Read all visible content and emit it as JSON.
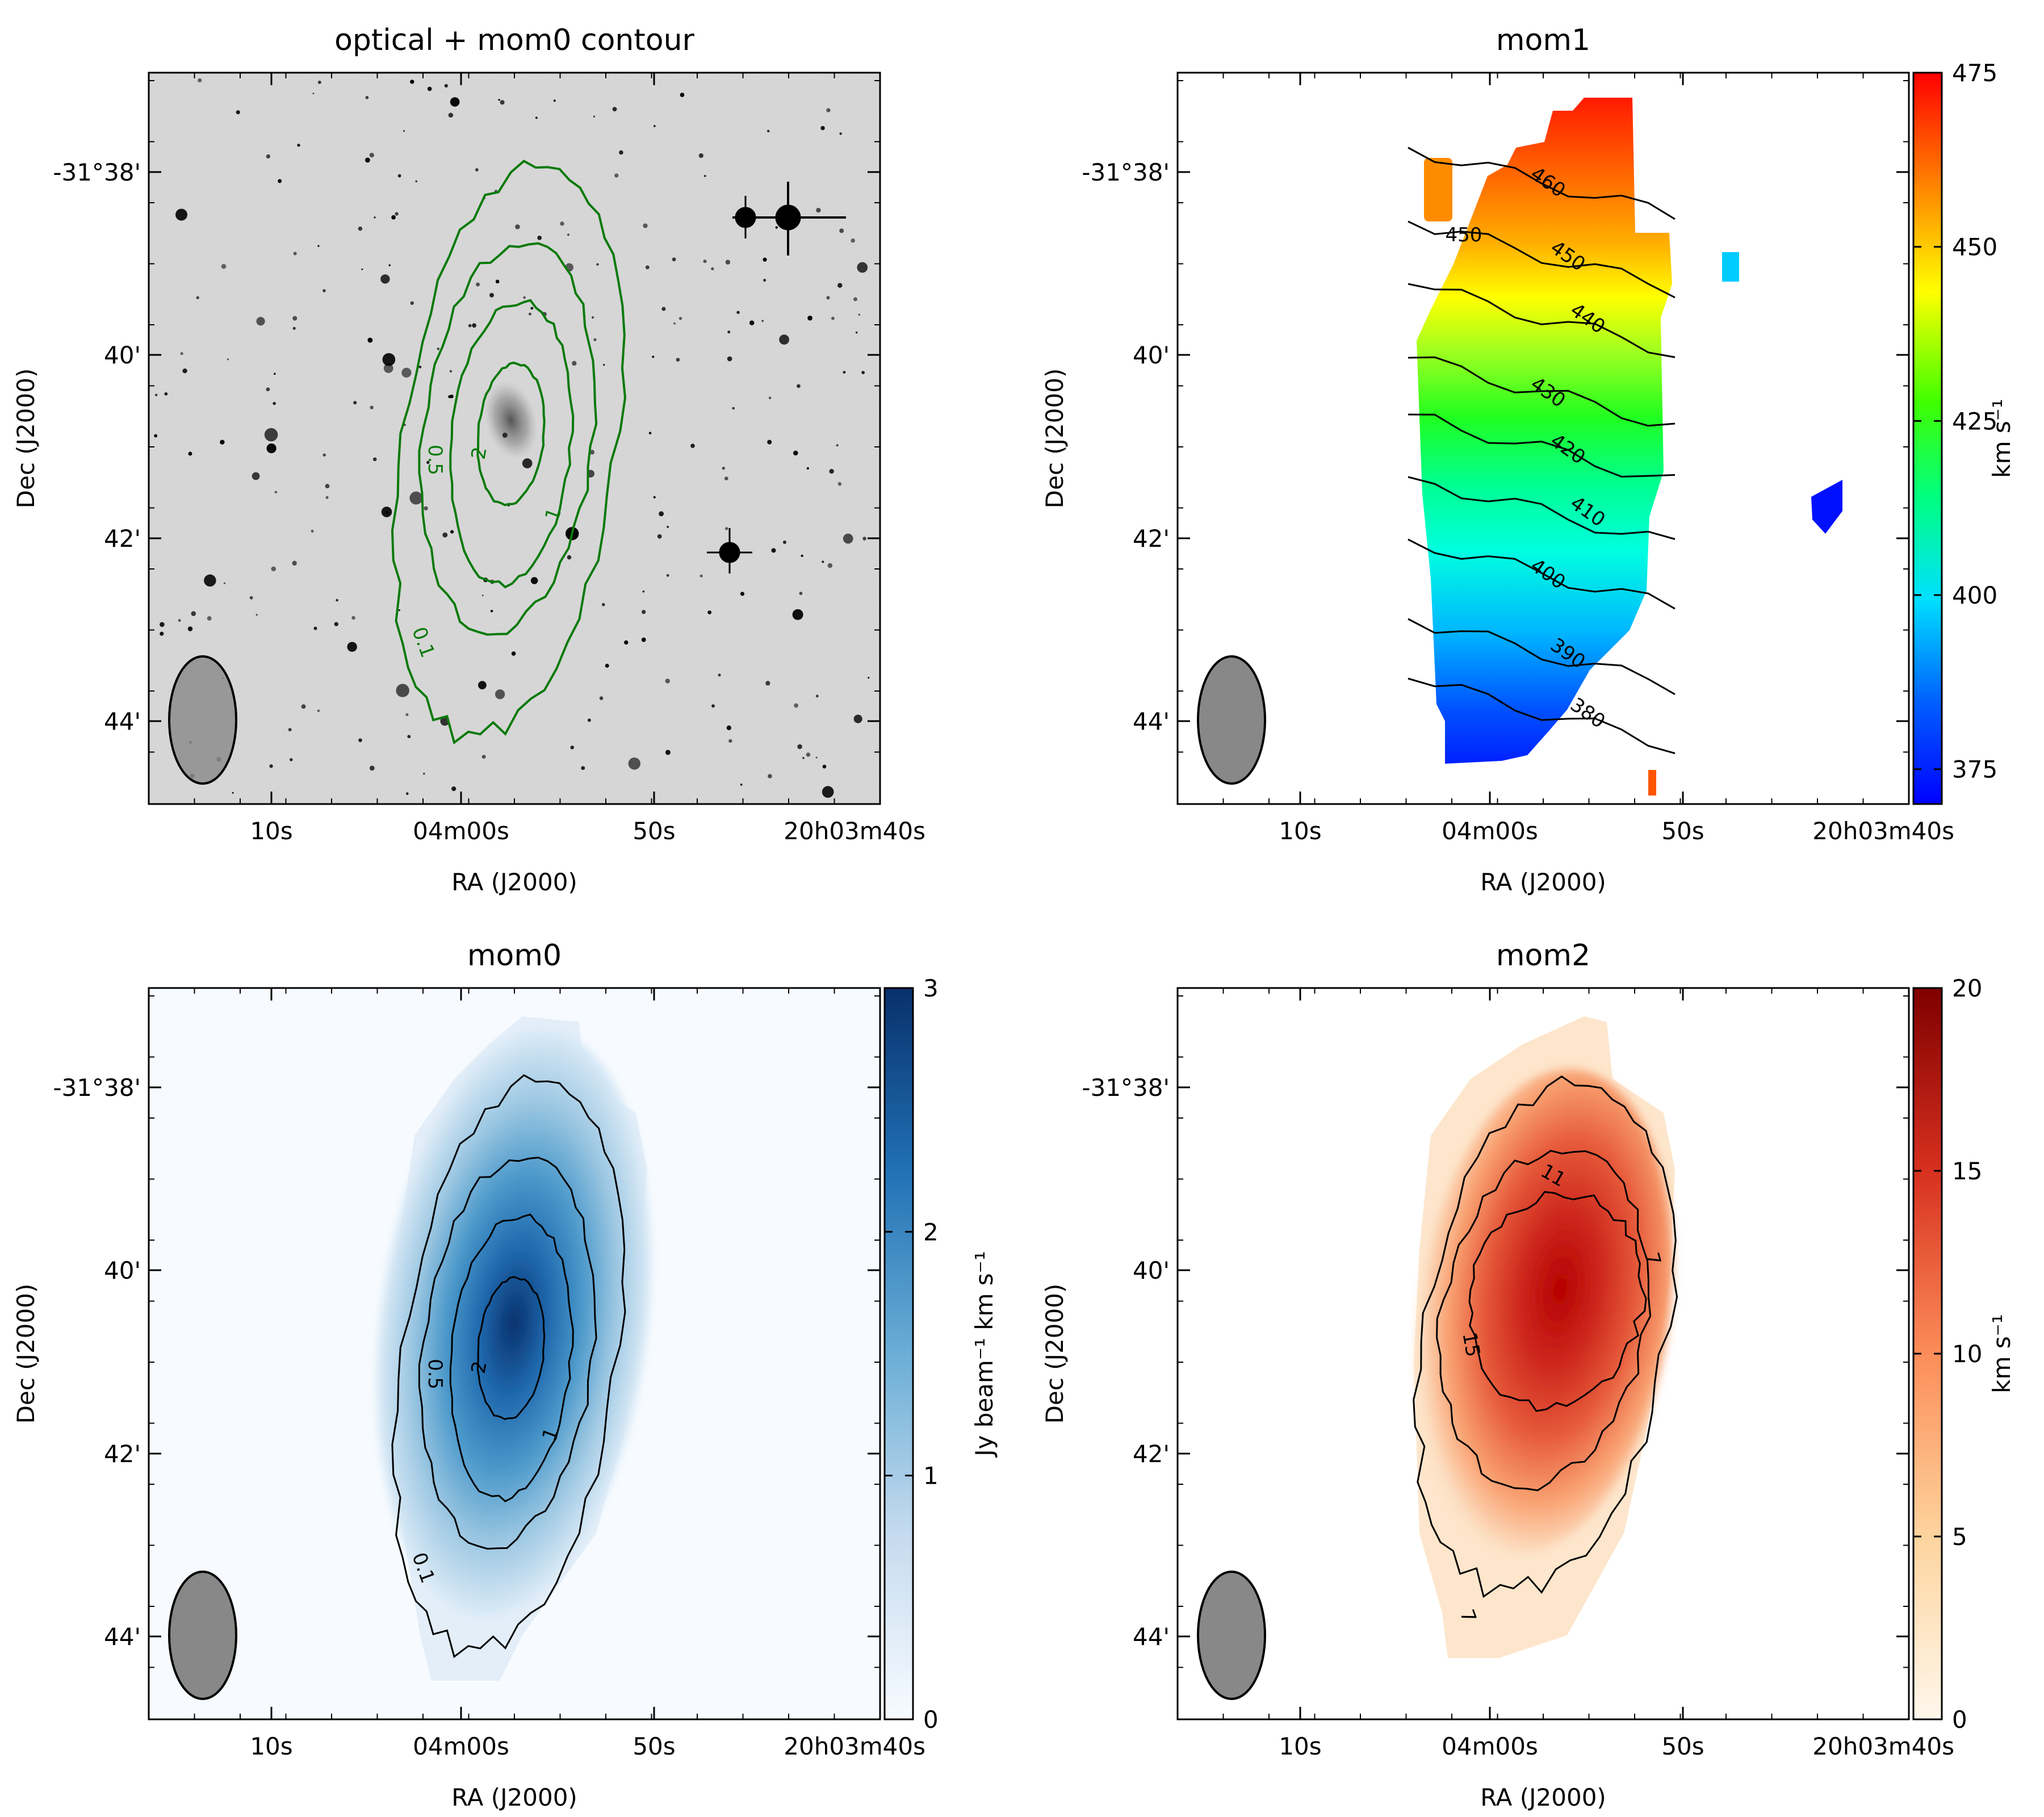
{
  "chart_data": [
    {
      "type": "heatmap",
      "panel": "optical",
      "title": "optical + mom0 contour",
      "xlabel": "RA (J2000)",
      "ylabel": "Dec (J2000)",
      "xticks": [
        "10s",
        "04m00s",
        "50s",
        "20h03m40s"
      ],
      "yticks": [
        "-31°38'",
        "40'",
        "42'",
        "44'"
      ],
      "contour_levels": [
        0.1,
        0.5,
        1,
        2
      ],
      "contour_labels": [
        "0.1",
        "0.5",
        "1",
        "2"
      ],
      "contour_color": "#0a7a0a",
      "image_colormap": "gray_r"
    },
    {
      "type": "heatmap",
      "panel": "mom1",
      "title": "mom1",
      "xlabel": "RA (J2000)",
      "ylabel": "Dec (J2000)",
      "xticks": [
        "10s",
        "04m00s",
        "50s",
        "20h03m40s"
      ],
      "yticks": [
        "-31°38'",
        "40'",
        "42'",
        "44'"
      ],
      "colormap": "jet",
      "colorbar": {
        "label": "km s⁻¹",
        "range": [
          370,
          475
        ],
        "ticks": [
          "375",
          "400",
          "425",
          "450",
          "475"
        ]
      },
      "contour_levels": [
        380,
        390,
        400,
        410,
        420,
        430,
        440,
        450,
        460
      ],
      "contour_labels": [
        "380",
        "390",
        "400",
        "410",
        "420",
        "430",
        "440",
        "450",
        "460"
      ]
    },
    {
      "type": "heatmap",
      "panel": "mom0",
      "title": "mom0",
      "xlabel": "RA (J2000)",
      "ylabel": "Dec (J2000)",
      "xticks": [
        "10s",
        "04m00s",
        "50s",
        "20h03m40s"
      ],
      "yticks": [
        "-31°38'",
        "40'",
        "42'",
        "44'"
      ],
      "colormap": "Blues",
      "colorbar": {
        "label": "Jy beam⁻¹ km s⁻¹",
        "range": [
          0,
          3
        ],
        "ticks": [
          "0",
          "1",
          "2",
          "3"
        ]
      },
      "contour_levels": [
        0.1,
        0.5,
        1,
        2
      ],
      "contour_labels": [
        "0.1",
        "0.5",
        "1",
        "2"
      ]
    },
    {
      "type": "heatmap",
      "panel": "mom2",
      "title": "mom2",
      "xlabel": "RA (J2000)",
      "ylabel": "Dec (J2000)",
      "xticks": [
        "10s",
        "04m00s",
        "50s",
        "20h03m40s"
      ],
      "yticks": [
        "-31°38'",
        "40'",
        "42'",
        "44'"
      ],
      "colormap": "OrRd",
      "colorbar": {
        "label": "km s⁻¹",
        "range": [
          0,
          20
        ],
        "ticks": [
          "0",
          "5",
          "10",
          "15",
          "20"
        ]
      },
      "contour_levels": [
        7,
        11,
        15
      ],
      "contour_labels": [
        "7",
        "11",
        "15"
      ]
    }
  ]
}
